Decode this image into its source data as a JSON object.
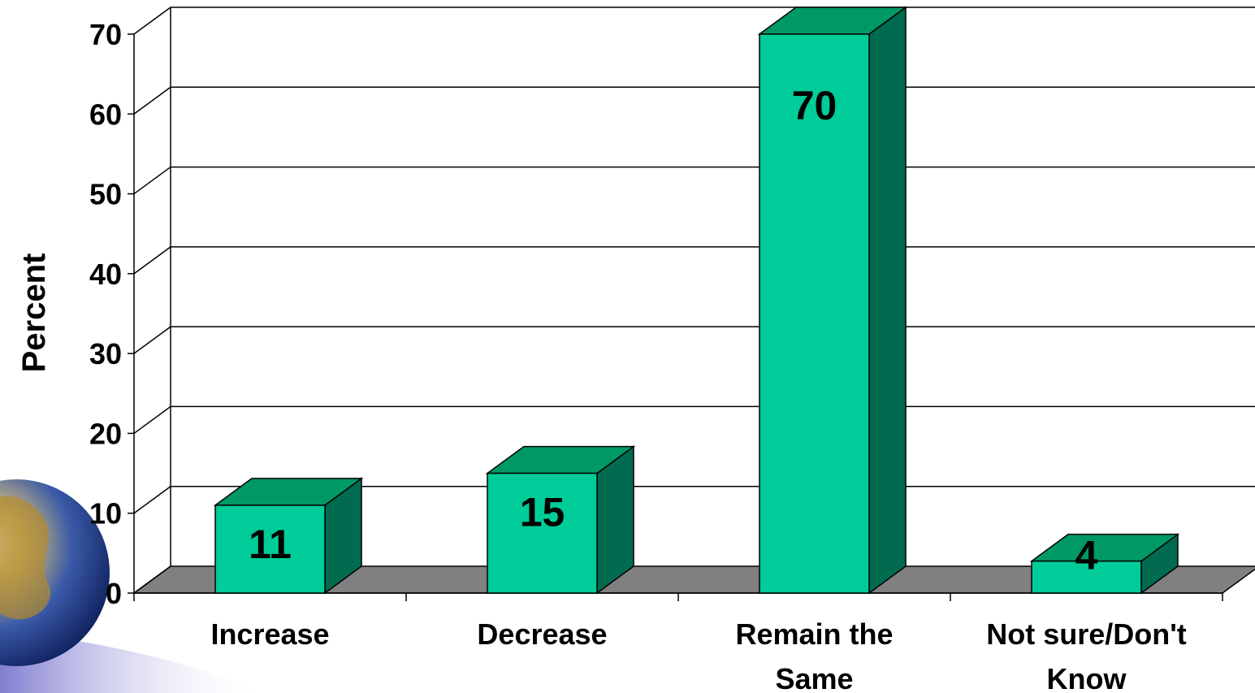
{
  "chart_data": {
    "type": "bar",
    "categories": [
      "Increase",
      "Decrease",
      "Remain the Same",
      "Not sure/Don't Know"
    ],
    "category_lines": [
      [
        "Increase"
      ],
      [
        "Decrease"
      ],
      [
        "Remain the",
        "Same"
      ],
      [
        "Not sure/Don't",
        "Know"
      ]
    ],
    "values": [
      11,
      15,
      70,
      4
    ],
    "data_labels": [
      "11",
      "15",
      "70",
      "4"
    ],
    "ylabel": "Percent",
    "ylim": [
      0,
      70
    ],
    "yticks": [
      0,
      10,
      20,
      30,
      40,
      50,
      60,
      70
    ],
    "grid": true,
    "bar_style": "3d",
    "colors": {
      "bar_front": "#00CC99",
      "bar_top": "#009966",
      "bar_side": "#006B4F",
      "floor": "#808080",
      "gridline": "#000000"
    }
  },
  "decoration": {
    "globe_icon": "globe-icon"
  }
}
